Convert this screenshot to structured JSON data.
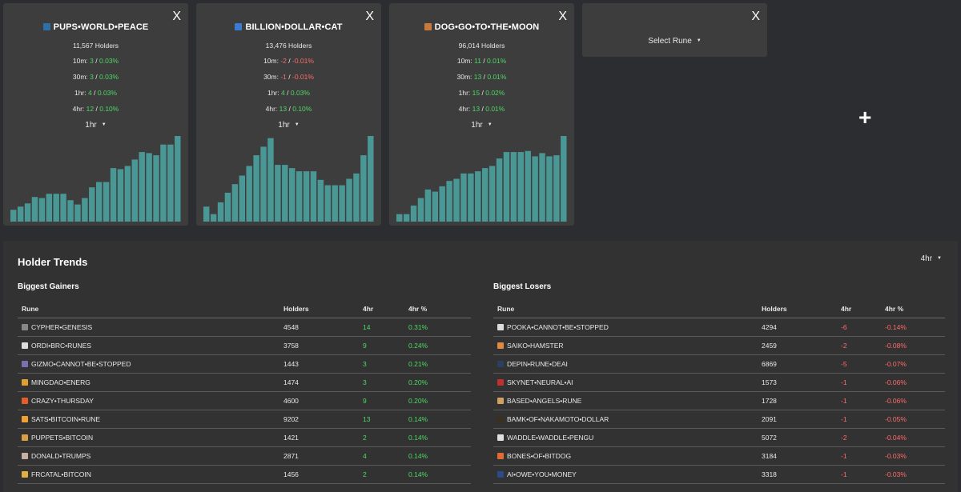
{
  "cards": [
    {
      "title": "PUPS•WORLD•PEACE",
      "icon": "rune-logo-icon",
      "icon_color": "#2f6fa8",
      "holders": "11,567 Holders",
      "stats": [
        {
          "label": "10m:",
          "change": "3",
          "pct": "0.03%",
          "dir": "pos"
        },
        {
          "label": "30m:",
          "change": "3",
          "pct": "0.03%",
          "dir": "pos"
        },
        {
          "label": "1hr:",
          "change": "4",
          "pct": "0.03%",
          "dir": "pos"
        },
        {
          "label": "4hr:",
          "change": "12",
          "pct": "0.10%",
          "dir": "pos"
        }
      ],
      "period": "1hr",
      "close": "X",
      "chart_data": {
        "type": "bar",
        "values": [
          11,
          14,
          17,
          23,
          22,
          26,
          26,
          26,
          20,
          16,
          22,
          32,
          37,
          37,
          50,
          49,
          52,
          58,
          65,
          64,
          62,
          72,
          72,
          80
        ]
      }
    },
    {
      "title": "BILLION•DOLLAR•CAT",
      "icon": "rune-logo-icon",
      "icon_color": "#3a7bd5",
      "holders": "13,476 Holders",
      "stats": [
        {
          "label": "10m:",
          "change": "-2",
          "pct": "-0.01%",
          "dir": "neg"
        },
        {
          "label": "30m:",
          "change": "-1",
          "pct": "-0.01%",
          "dir": "neg"
        },
        {
          "label": "1hr:",
          "change": "4",
          "pct": "0.03%",
          "dir": "pos"
        },
        {
          "label": "4hr:",
          "change": "13",
          "pct": "0.10%",
          "dir": "pos"
        }
      ],
      "period": "1hr",
      "close": "X",
      "chart_data": {
        "type": "bar",
        "values": [
          14,
          7,
          18,
          27,
          35,
          43,
          52,
          62,
          70,
          78,
          53,
          53,
          50,
          47,
          47,
          47,
          39,
          34,
          34,
          34,
          40,
          45,
          62,
          80
        ]
      }
    },
    {
      "title": "DOG•GO•TO•THE•MOON",
      "icon": "dog-icon",
      "icon_color": "#c97a3a",
      "holders": "96,014 Holders",
      "stats": [
        {
          "label": "10m:",
          "change": "11",
          "pct": "0.01%",
          "dir": "pos"
        },
        {
          "label": "30m:",
          "change": "13",
          "pct": "0.01%",
          "dir": "pos"
        },
        {
          "label": "1hr:",
          "change": "15",
          "pct": "0.02%",
          "dir": "pos"
        },
        {
          "label": "4hr:",
          "change": "13",
          "pct": "0.01%",
          "dir": "pos"
        }
      ],
      "period": "1hr",
      "close": "X",
      "chart_data": {
        "type": "bar",
        "values": [
          7,
          7,
          15,
          22,
          30,
          28,
          33,
          38,
          40,
          45,
          45,
          47,
          50,
          52,
          59,
          65,
          65,
          65,
          66,
          61,
          64,
          61,
          62,
          80
        ]
      }
    }
  ],
  "select_card": {
    "close": "X",
    "label": "Select Rune"
  },
  "add_button": "+",
  "trends": {
    "heading": "Holder Trends",
    "period": "4hr",
    "gainers": {
      "title": "Biggest Gainers",
      "columns": [
        "Rune",
        "Holders",
        "4hr",
        "4hr %"
      ],
      "rows": [
        {
          "name": "CYPHER•GENESIS",
          "holders": "4548",
          "change": "14",
          "pct": "0.31%",
          "icon_color": "#888888"
        },
        {
          "name": "ORDI•BRC•RUNES",
          "holders": "3758",
          "change": "9",
          "pct": "0.24%",
          "icon_color": "#dddddd"
        },
        {
          "name": "GIZMO•CANNOT•BE•STOPPED",
          "holders": "1443",
          "change": "3",
          "pct": "0.21%",
          "icon_color": "#7a6fb0"
        },
        {
          "name": "MINGDAO•ENERG",
          "holders": "1474",
          "change": "3",
          "pct": "0.20%",
          "icon_color": "#e0a030"
        },
        {
          "name": "CRAZY•THURSDAY",
          "holders": "4600",
          "change": "9",
          "pct": "0.20%",
          "icon_color": "#e85c2a"
        },
        {
          "name": "SATS•BITCOIN•RUNE",
          "holders": "9202",
          "change": "13",
          "pct": "0.14%",
          "icon_color": "#f0a030"
        },
        {
          "name": "PUPPETS•BITCOIN",
          "holders": "1421",
          "change": "2",
          "pct": "0.14%",
          "icon_color": "#d8a040"
        },
        {
          "name": "DONALD•TRUMPS",
          "holders": "2871",
          "change": "4",
          "pct": "0.14%",
          "icon_color": "#c8b0a0"
        },
        {
          "name": "FRCATAL•BITCOIN",
          "holders": "1456",
          "change": "2",
          "pct": "0.14%",
          "icon_color": "#e0b040"
        }
      ]
    },
    "losers": {
      "title": "Biggest Losers",
      "columns": [
        "Rune",
        "Holders",
        "4hr",
        "4hr %"
      ],
      "rows": [
        {
          "name": "POOKA•CANNOT•BE•STOPPED",
          "holders": "4294",
          "change": "-6",
          "pct": "-0.14%",
          "icon_color": "#dddddd"
        },
        {
          "name": "SAIKO•HAMSTER",
          "holders": "2459",
          "change": "-2",
          "pct": "-0.08%",
          "icon_color": "#e08a40"
        },
        {
          "name": "DEPIN•RUNE•DEAI",
          "holders": "6869",
          "change": "-5",
          "pct": "-0.07%",
          "icon_color": "#2a4060"
        },
        {
          "name": "SKYNET•NEURAL•AI",
          "holders": "1573",
          "change": "-1",
          "pct": "-0.06%",
          "icon_color": "#c03030"
        },
        {
          "name": "BASED•ANGELS•RUNE",
          "holders": "1728",
          "change": "-1",
          "pct": "-0.06%",
          "icon_color": "#d0a060"
        },
        {
          "name": "BAMK•OF•NAKAMOTO•DOLLAR",
          "holders": "2091",
          "change": "-1",
          "pct": "-0.05%",
          "icon_color": "#3a3020"
        },
        {
          "name": "WADDLE•WADDLE•PENGU",
          "holders": "5072",
          "change": "-2",
          "pct": "-0.04%",
          "icon_color": "#e0e0e0"
        },
        {
          "name": "BONES•OF•BITDOG",
          "holders": "3184",
          "change": "-1",
          "pct": "-0.03%",
          "icon_color": "#e06a30"
        },
        {
          "name": "AI•OWE•YOU•MONEY",
          "holders": "3318",
          "change": "-1",
          "pct": "-0.03%",
          "icon_color": "#2a4a8a"
        }
      ]
    }
  },
  "colors": {
    "bar": "#4a9896",
    "positive": "#4cd964",
    "negative": "#ff6b6b",
    "card_bg": "#3d3d3d",
    "page_bg": "#2b2d31"
  }
}
